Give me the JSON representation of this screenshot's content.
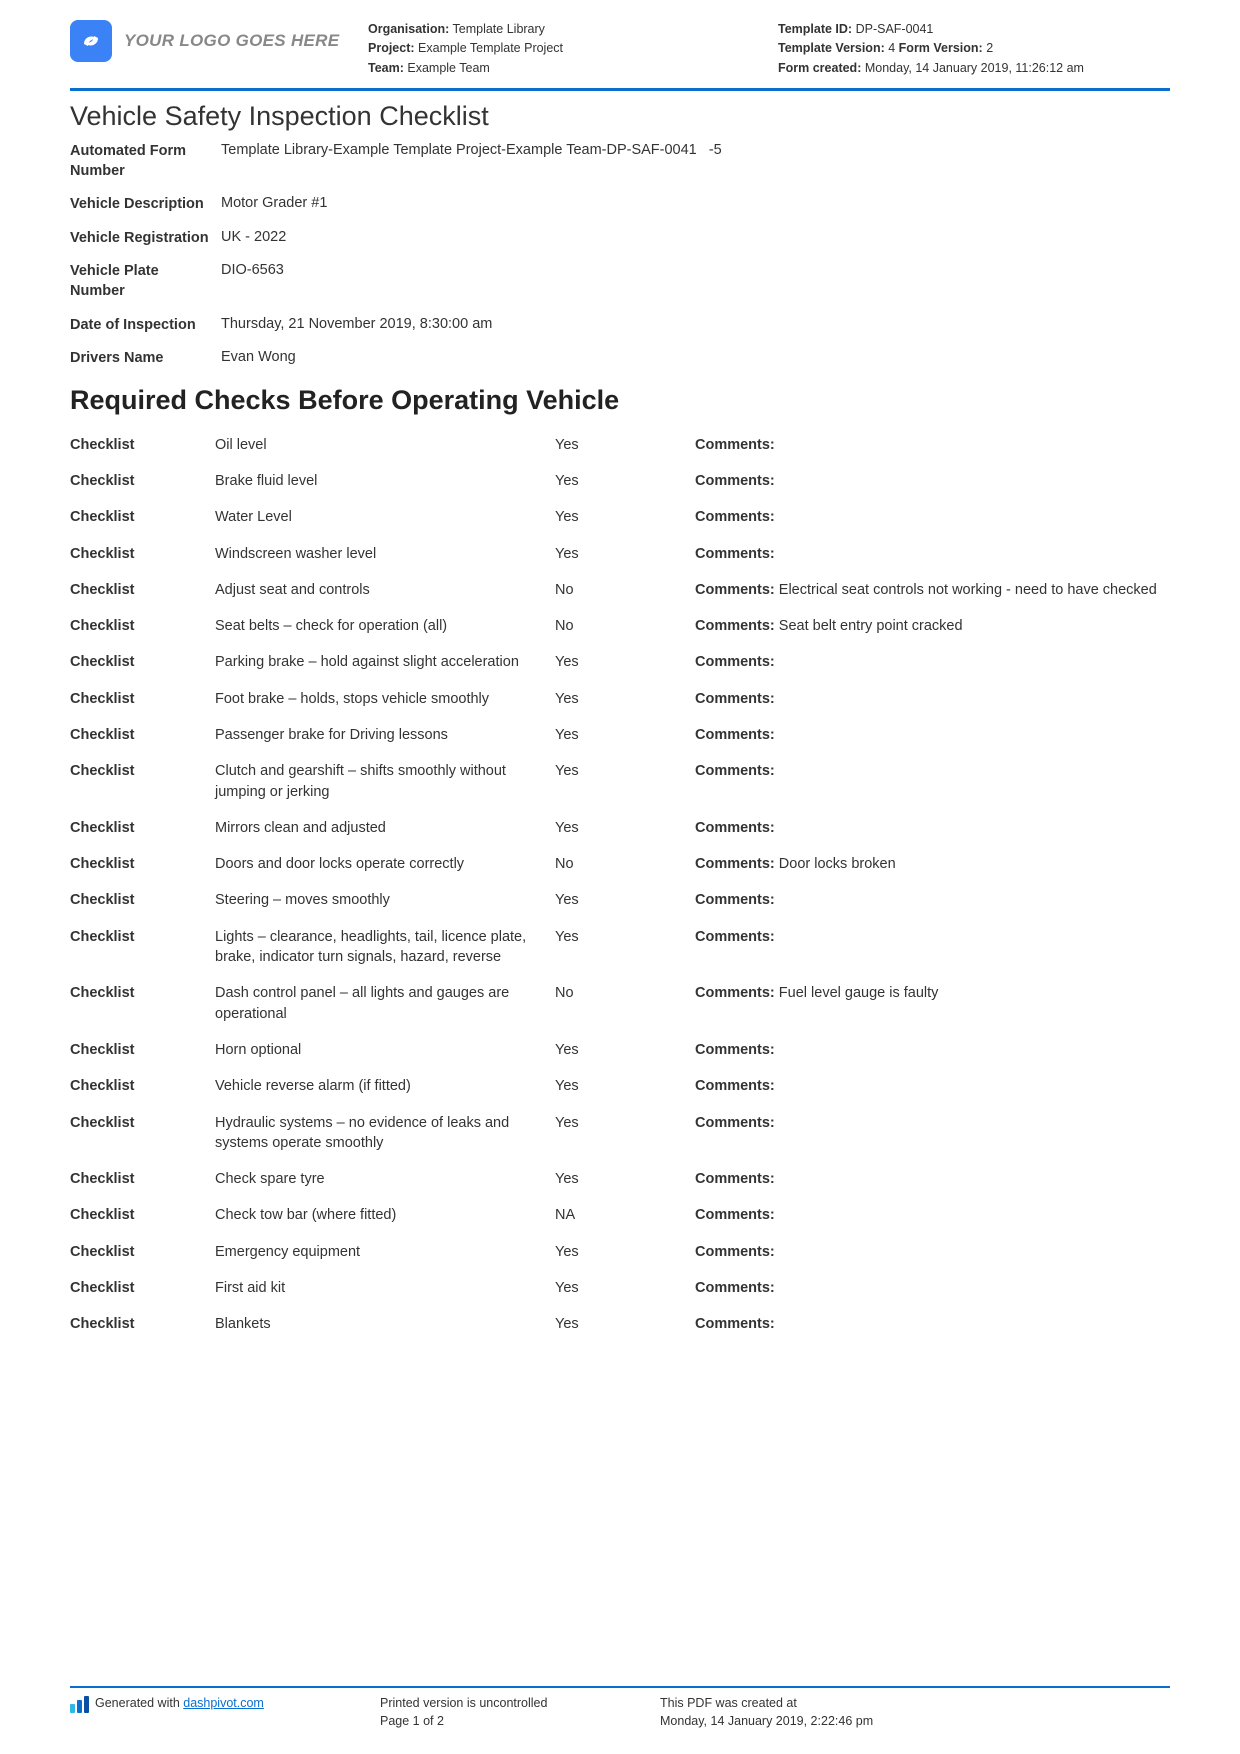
{
  "header": {
    "logo_text": "YOUR LOGO GOES HERE",
    "organisation_label": "Organisation:",
    "organisation_value": "Template Library",
    "project_label": "Project:",
    "project_value": "Example Template Project",
    "team_label": "Team:",
    "team_value": "Example Team",
    "template_id_label": "Template ID:",
    "template_id_value": "DP-SAF-0041",
    "template_version_label": "Template Version:",
    "template_version_value": "4",
    "form_version_label": "Form Version:",
    "form_version_value": "2",
    "form_created_label": "Form created:",
    "form_created_value": "Monday, 14 January 2019, 11:26:12 am"
  },
  "title": "Vehicle Safety Inspection Checklist",
  "fields": [
    {
      "label": "Automated Form Number",
      "value": "Template Library-Example Template Project-Example Team-DP-SAF-0041   -5"
    },
    {
      "label": "Vehicle Description",
      "value": "Motor Grader #1"
    },
    {
      "label": "Vehicle Registration",
      "value": "UK - 2022"
    },
    {
      "label": "Vehicle Plate Number",
      "value": "DIO-6563"
    },
    {
      "label": "Date of Inspection",
      "value": "Thursday, 21 November 2019, 8:30:00 am"
    },
    {
      "label": "Drivers Name",
      "value": "Evan Wong"
    }
  ],
  "section_heading": "Required Checks Before Operating Vehicle",
  "checklist_label": "Checklist",
  "comments_label": "Comments:",
  "checklist": [
    {
      "item": "Oil level",
      "result": "Yes",
      "comment": ""
    },
    {
      "item": "Brake fluid level",
      "result": "Yes",
      "comment": ""
    },
    {
      "item": "Water Level",
      "result": "Yes",
      "comment": ""
    },
    {
      "item": "Windscreen washer level",
      "result": "Yes",
      "comment": ""
    },
    {
      "item": "Adjust seat and controls",
      "result": "No",
      "comment": "Electrical seat controls not working - need to have checked"
    },
    {
      "item": "Seat belts – check for operation (all)",
      "result": "No",
      "comment": "Seat belt entry point cracked"
    },
    {
      "item": "Parking brake – hold against slight acceleration",
      "result": "Yes",
      "comment": ""
    },
    {
      "item": "Foot brake – holds, stops vehicle smoothly",
      "result": "Yes",
      "comment": ""
    },
    {
      "item": "Passenger brake for Driving lessons",
      "result": "Yes",
      "comment": ""
    },
    {
      "item": "Clutch and gearshift – shifts smoothly without jumping or jerking",
      "result": "Yes",
      "comment": ""
    },
    {
      "item": "Mirrors clean and adjusted",
      "result": "Yes",
      "comment": ""
    },
    {
      "item": "Doors and door locks operate correctly",
      "result": "No",
      "comment": "Door locks broken"
    },
    {
      "item": "Steering – moves smoothly",
      "result": "Yes",
      "comment": ""
    },
    {
      "item": "Lights – clearance, headlights, tail, licence plate, brake, indicator turn signals, hazard, reverse",
      "result": "Yes",
      "comment": ""
    },
    {
      "item": "Dash control panel – all lights and gauges are operational",
      "result": "No",
      "comment": "Fuel level gauge is faulty"
    },
    {
      "item": "Horn optional",
      "result": "Yes",
      "comment": ""
    },
    {
      "item": "Vehicle reverse alarm (if fitted)",
      "result": "Yes",
      "comment": ""
    },
    {
      "item": "Hydraulic systems – no evidence of leaks and systems operate smoothly",
      "result": "Yes",
      "comment": ""
    },
    {
      "item": "Check spare tyre",
      "result": "Yes",
      "comment": ""
    },
    {
      "item": "Check tow bar (where fitted)",
      "result": "NA",
      "comment": ""
    },
    {
      "item": "Emergency equipment",
      "result": "Yes",
      "comment": ""
    },
    {
      "item": "First aid kit",
      "result": "Yes",
      "comment": ""
    },
    {
      "item": "Blankets",
      "result": "Yes",
      "comment": ""
    }
  ],
  "footer": {
    "generated_prefix": "Generated with ",
    "generated_link": "dashpivot.com",
    "uncontrolled": "Printed version is uncontrolled",
    "page": "Page 1 of 2",
    "created_label": "This PDF was created at",
    "created_value": "Monday, 14 January 2019, 2:22:46 pm"
  },
  "colors": {
    "accent": "#0a6ed1",
    "logo_bg": "#3b82f6",
    "text": "#333333",
    "muted": "#888888",
    "bar1": "#2fb8e6",
    "bar2": "#0a6ed1",
    "bar3": "#0a4fa3"
  }
}
